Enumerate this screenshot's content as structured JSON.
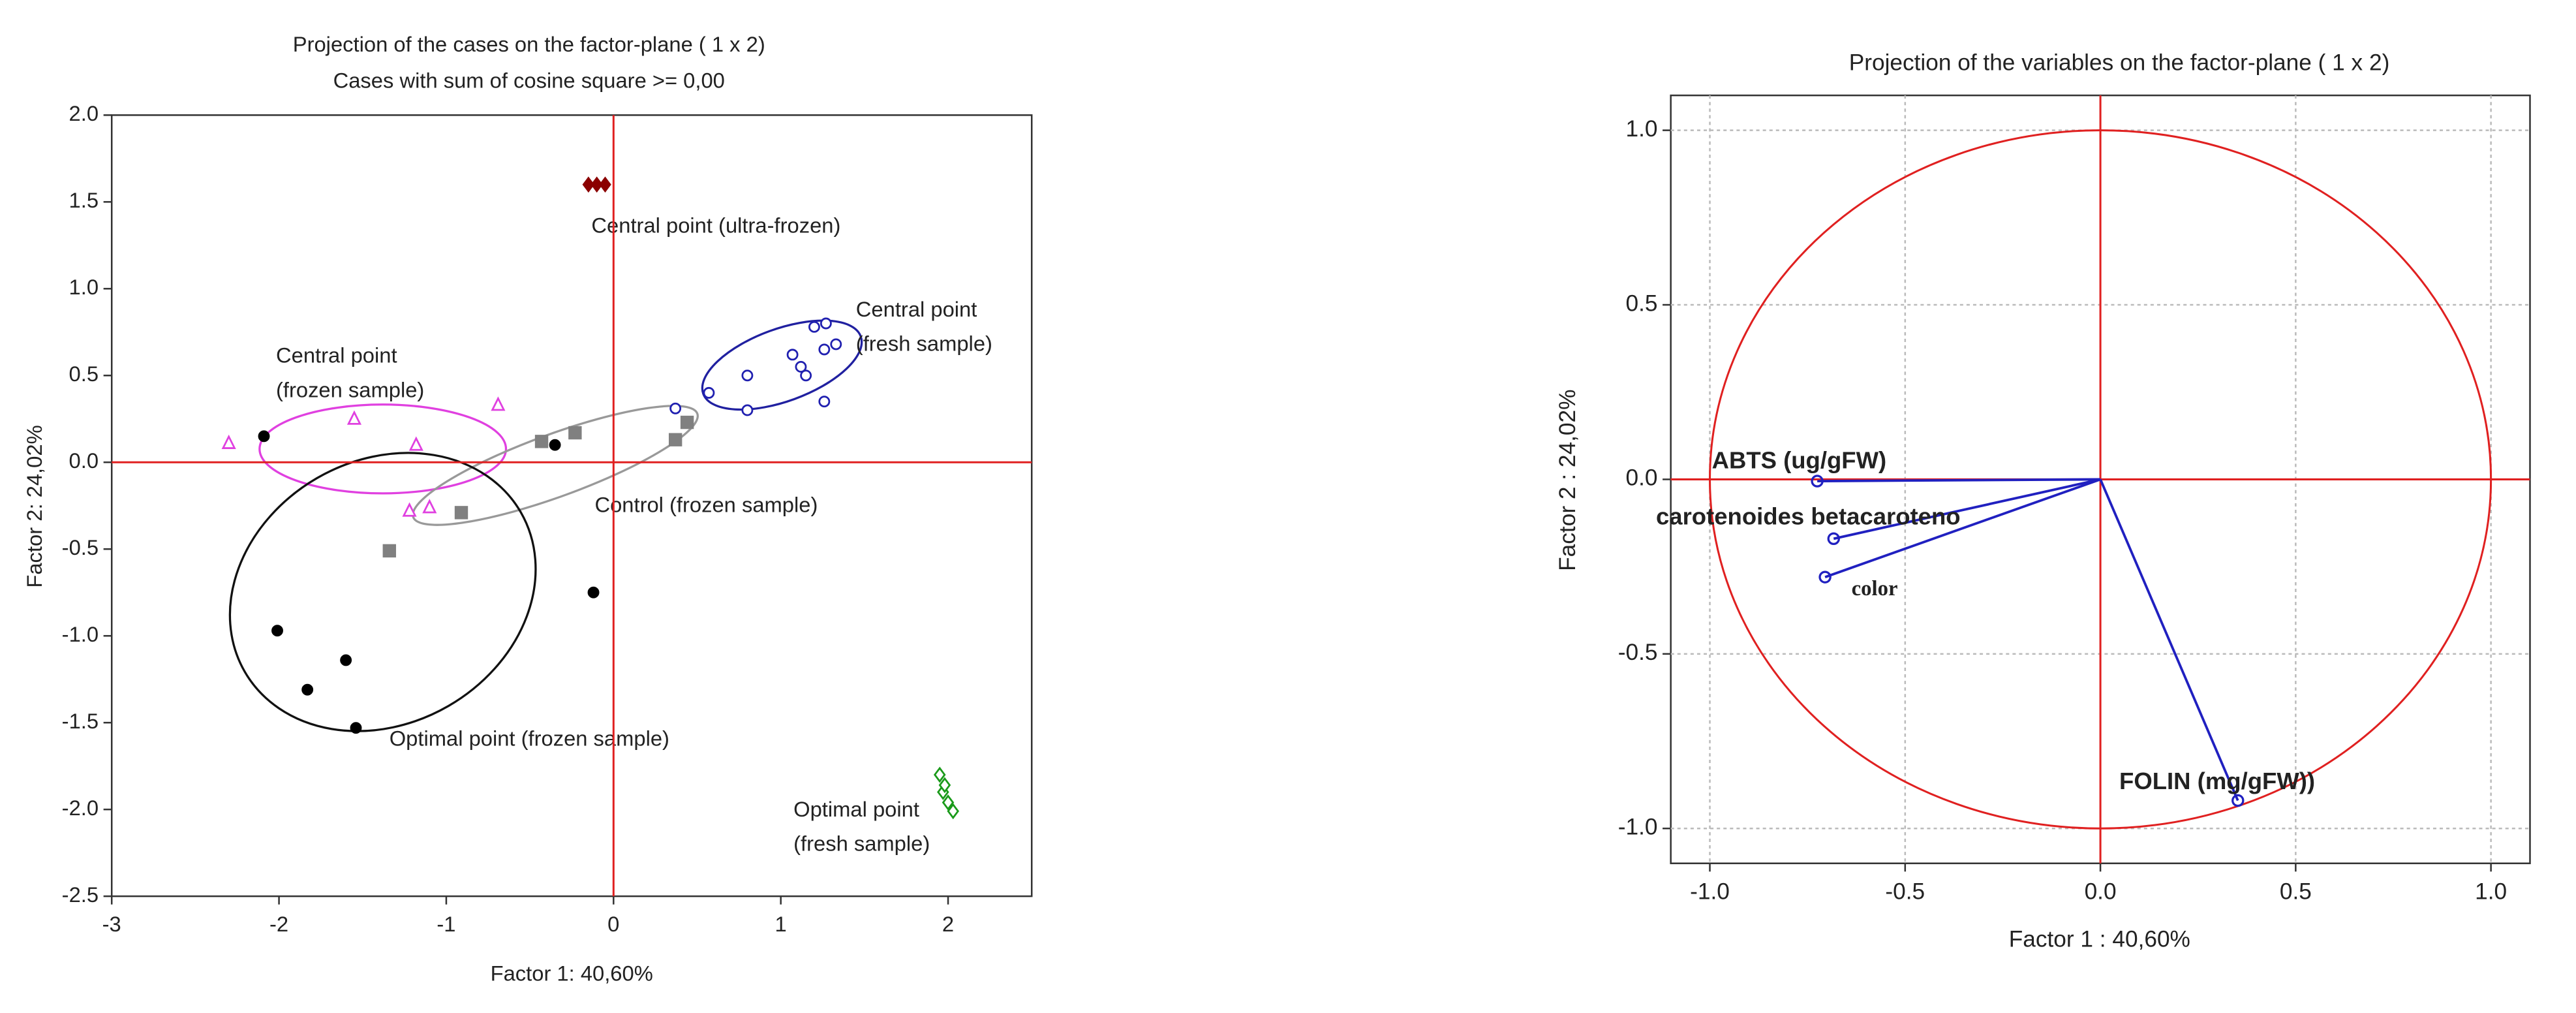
{
  "chart_data": [
    {
      "type": "scatter",
      "title": "Projection of the cases on the factor-plane (  1 x   2)",
      "subtitle": "Cases with sum of cosine square >=  0,00",
      "xlabel": "Factor 1: 40,60%",
      "ylabel": "Factor 2: 24,02%",
      "annotations": [
        "Central point (ultra-frozen)",
        "Central point",
        "(fresh sample)",
        "Central point",
        "(frozen sample)",
        "Control (frozen sample)",
        "Optimal point (frozen sample)",
        "Optimal point",
        "(fresh sample)"
      ],
      "xlim": [
        -3,
        2.5
      ],
      "ylim": [
        -2.5,
        2
      ],
      "xticks": [
        -3,
        -2,
        -1,
        0,
        1,
        2
      ],
      "yticks": [
        {
          "value": 2,
          "label": "2.0"
        },
        {
          "value": 1.5,
          "label": "1.5"
        },
        {
          "value": 1,
          "label": "1.0"
        },
        {
          "value": 0.5,
          "label": "0.5"
        },
        {
          "value": 0,
          "label": "0.0"
        },
        {
          "value": -0.5,
          "label": "-0.5"
        },
        {
          "value": -1,
          "label": "-1.0"
        },
        {
          "value": -1.5,
          "label": "-1.5"
        },
        {
          "value": -2,
          "label": "-2.0"
        },
        {
          "value": -2.5,
          "label": "-2.5"
        }
      ],
      "grid": false,
      "reference_color": "#e02020",
      "series": [
        {
          "color": "#8b0000",
          "marker": "diamond-filled",
          "x": [
            -0.15,
            -0.1,
            -0.05
          ],
          "values": [
            1.6,
            1.6,
            1.6
          ]
        },
        {
          "color": "#2020b0",
          "marker": "circle-open",
          "x": [
            0.37,
            0.57,
            0.8,
            0.8,
            1.07,
            1.12,
            1.15,
            1.2,
            1.27,
            1.26,
            1.33,
            1.26
          ],
          "values": [
            0.31,
            0.4,
            0.5,
            0.3,
            0.62,
            0.55,
            0.5,
            0.78,
            0.8,
            0.65,
            0.68,
            0.35
          ]
        },
        {
          "color": "#e040e0",
          "marker": "triangle-open",
          "x": [
            -2.3,
            -1.55,
            -1.18,
            -0.69,
            -1.22,
            -1.1
          ],
          "values": [
            0.11,
            0.25,
            0.1,
            0.33,
            -0.28,
            -0.26
          ]
        },
        {
          "color": "#808080",
          "marker": "square-filled",
          "x": [
            -1.34,
            -0.91,
            -0.43,
            -0.23,
            0.37,
            0.44
          ],
          "values": [
            -0.51,
            -0.29,
            0.12,
            0.17,
            0.13,
            0.23
          ]
        },
        {
          "color": "#000000",
          "marker": "circle-filled",
          "x": [
            -2.09,
            -0.35,
            -0.12,
            -2.01,
            -1.6,
            -1.83,
            -1.54
          ],
          "values": [
            0.15,
            0.1,
            -0.75,
            -0.97,
            -1.14,
            -1.31,
            -1.53
          ]
        },
        {
          "color": "#1a9a1a",
          "marker": "diamond-open",
          "x": [
            1.95,
            1.97,
            2.0,
            2.03,
            1.98
          ],
          "values": [
            -1.8,
            -1.9,
            -1.96,
            -2.01,
            -1.86
          ]
        }
      ]
    },
    {
      "type": "vector",
      "title": "Projection of the variables on the factor-plane (  1 x   2)",
      "xlabel": "Factor 1 : 40,60%",
      "ylabel": "Factor 2 : 24,02%",
      "xlim": [
        -1.1,
        1.1
      ],
      "ylim": [
        -1.1,
        1.1
      ],
      "xticks": [
        {
          "value": -1,
          "label": "-1.0"
        },
        {
          "value": -0.5,
          "label": "-0.5"
        },
        {
          "value": 0,
          "label": "0.0"
        },
        {
          "value": 0.5,
          "label": "0.5"
        },
        {
          "value": 1,
          "label": "1.0"
        }
      ],
      "yticks": [
        {
          "value": 1,
          "label": "1.0"
        },
        {
          "value": 0.5,
          "label": "0.5"
        },
        {
          "value": 0,
          "label": "0.0"
        },
        {
          "value": -0.5,
          "label": "-0.5"
        },
        {
          "value": -1,
          "label": "-1.0"
        }
      ],
      "grid": true,
      "reference_color": "#e02020",
      "color": "#2020c0",
      "labels": [
        "ABTS (ug/gFW)",
        "carotenoides betacaroteno",
        "color",
        "FOLIN (mg/gFW))"
      ],
      "x": [
        -0.725,
        -0.683,
        -0.705,
        0.352
      ],
      "values": [
        -0.005,
        -0.17,
        -0.28,
        -0.92
      ]
    }
  ]
}
